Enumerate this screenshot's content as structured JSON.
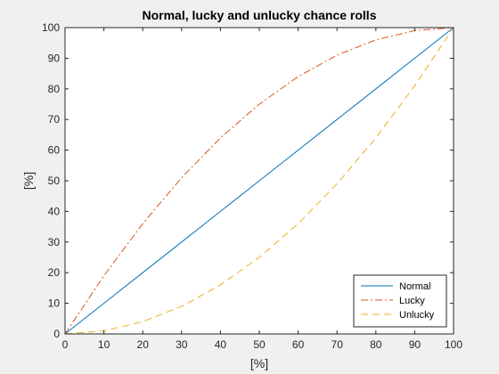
{
  "chart_data": {
    "type": "line",
    "title": "Normal, lucky and unlucky chance rolls",
    "xlabel": "[%]",
    "ylabel": "[%]",
    "xlim": [
      0,
      100
    ],
    "ylim": [
      0,
      100
    ],
    "xticks": [
      0,
      10,
      20,
      30,
      40,
      50,
      60,
      70,
      80,
      90,
      100
    ],
    "yticks": [
      0,
      10,
      20,
      30,
      40,
      50,
      60,
      70,
      80,
      90,
      100
    ],
    "grid": false,
    "legend_position": "bottom-right",
    "x": [
      0,
      10,
      20,
      30,
      40,
      50,
      60,
      70,
      80,
      90,
      100
    ],
    "series": [
      {
        "name": "Normal",
        "color": "#0072BD",
        "style": "solid",
        "values": [
          0,
          10,
          20,
          30,
          40,
          50,
          60,
          70,
          80,
          90,
          100
        ]
      },
      {
        "name": "Lucky",
        "color": "#D95319",
        "style": "dash-dot",
        "values": [
          0,
          19,
          36,
          51,
          64,
          75,
          84,
          91,
          96,
          99,
          100
        ]
      },
      {
        "name": "Unlucky",
        "color": "#EDB120",
        "style": "dashed",
        "values": [
          0,
          1,
          4,
          9,
          16,
          25,
          36,
          49,
          64,
          81,
          100
        ]
      }
    ]
  }
}
